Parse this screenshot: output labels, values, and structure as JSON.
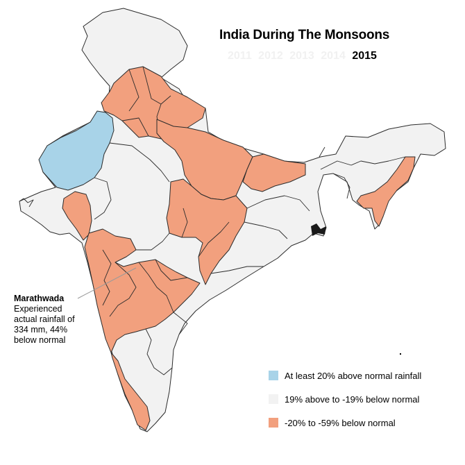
{
  "title": "India During The Monsoons",
  "years": [
    {
      "label": "2011",
      "active": false
    },
    {
      "label": "2012",
      "active": false
    },
    {
      "label": "2013",
      "active": false
    },
    {
      "label": "2014",
      "active": false
    },
    {
      "label": "2015",
      "active": true
    }
  ],
  "annotation": {
    "title": "Marathwada",
    "line1": "Experienced",
    "line2": "actual rainfall of",
    "line3": "334 mm, 44%",
    "line4": "below normal"
  },
  "legend": [
    {
      "label": "At least 20% above normal rainfall",
      "color": "#a8d3e8"
    },
    {
      "label": "19% above to -19% below normal",
      "color": "#f2f2f2"
    },
    {
      "label": "-20% to -59% below normal",
      "color": "#f2a07e"
    }
  ],
  "colors": {
    "above": "#a8d3e8",
    "normal": "#f2f2f2",
    "below": "#f2a07e",
    "border": "#2b2b2b",
    "callout": "#9a9a9a",
    "inactive_year": "#f1f1f1"
  }
}
